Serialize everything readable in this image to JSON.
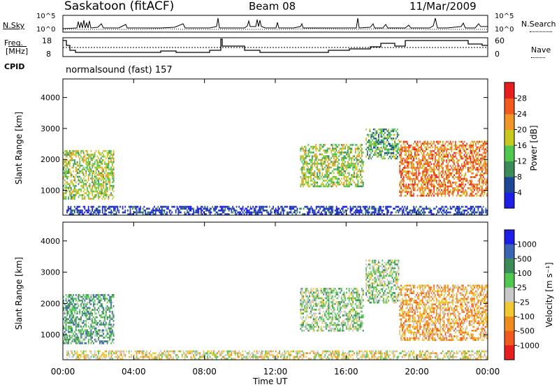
{
  "header": {
    "station": "Saskatoon (fitACF)",
    "beam": "Beam 08",
    "date": "11/Mar/2009"
  },
  "nsky_panel": {
    "label": "N.Sky",
    "left_ticks": [
      "10^5",
      "10^0"
    ],
    "right_ticks": [
      "10^5",
      "10^0"
    ],
    "right_label": "N.Search"
  },
  "freq_panel": {
    "label_line1": "Freq.",
    "label_line2": "[MHz]",
    "left_ticks": [
      "18",
      "8"
    ],
    "right_ticks": [
      "60",
      "0"
    ],
    "right_label": "Nave"
  },
  "cpid_panel": {
    "label": "CPID",
    "program": "normalsound (fast) 157"
  },
  "chart_data": [
    {
      "type": "heatmap",
      "name": "power",
      "ylabel": "Slant Range [km]",
      "yticks": [
        "1000",
        "2000",
        "3000",
        "4000"
      ],
      "ylim": [
        200,
        4600
      ],
      "colorbar_label": "Power [dB]",
      "colorbar_ticks": [
        "4",
        "8",
        "12",
        "16",
        "20",
        "24",
        "28"
      ],
      "colors": [
        "#1e1ee6",
        "#1e4696",
        "#3c8c5a",
        "#50c850",
        "#c8c81e",
        "#f09628",
        "#f05a1e",
        "#e61e1e"
      ],
      "echo_regions": [
        {
          "t0": 0.0,
          "t1": 2.9,
          "r0": 700,
          "r1": 2300,
          "level": 4
        },
        {
          "t0": 13.4,
          "t1": 17.0,
          "r0": 1100,
          "r1": 2500,
          "level": 4
        },
        {
          "t0": 17.1,
          "t1": 19.0,
          "r0": 2000,
          "r1": 3000,
          "level": 3
        },
        {
          "t0": 19.0,
          "t1": 24.0,
          "r0": 800,
          "r1": 2600,
          "level": 6
        },
        {
          "t0": 0.2,
          "t1": 24.0,
          "r0": 200,
          "r1": 500,
          "level": 1
        }
      ]
    },
    {
      "type": "heatmap",
      "name": "velocity",
      "ylabel": "Slant Range [km]",
      "xlabel": "Time UT",
      "xticks": [
        "00:00",
        "04:00",
        "08:00",
        "12:00",
        "16:00",
        "20:00",
        "00:00"
      ],
      "xlim": [
        0,
        24
      ],
      "yticks": [
        "1000",
        "2000",
        "3000",
        "4000"
      ],
      "ylim": [
        200,
        4600
      ],
      "colorbar_label": "Velocity [m s⁻¹]",
      "colorbar_ticks": [
        "1000",
        "500",
        "100",
        "25",
        "-25",
        "-100",
        "-500",
        "-1000"
      ],
      "colors": [
        "#1e1ee6",
        "#3c64b4",
        "#3c8c5a",
        "#50c850",
        "#c8c8c8",
        "#f0c832",
        "#f08c1e",
        "#f05a1e",
        "#e61e1e"
      ],
      "echo_regions": [
        {
          "t0": 0.0,
          "t1": 2.9,
          "r0": 700,
          "r1": 2300,
          "level": 3
        },
        {
          "t0": 13.4,
          "t1": 17.0,
          "r0": 1100,
          "r1": 2500,
          "level": 4
        },
        {
          "t0": 17.1,
          "t1": 19.0,
          "r0": 2000,
          "r1": 3400,
          "level": 4
        },
        {
          "t0": 19.0,
          "t1": 24.0,
          "r0": 800,
          "r1": 2600,
          "level": 6
        },
        {
          "t0": 0.2,
          "t1": 24.0,
          "r0": 200,
          "r1": 500,
          "level": 5
        }
      ]
    }
  ]
}
